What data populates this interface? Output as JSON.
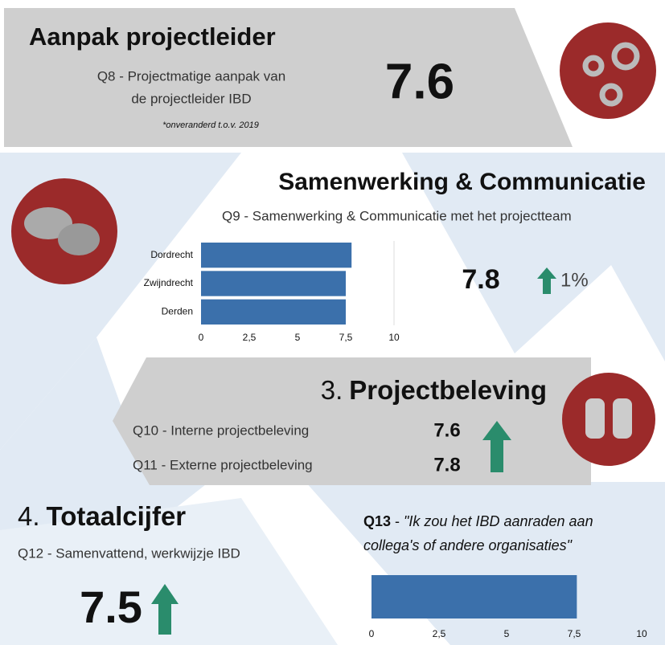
{
  "sections": [
    {
      "title": "Aanpak projectleider",
      "question_lines": [
        "Q8 - Projectmatige aanpak van",
        "de projectleider IBD"
      ],
      "note": "*onveranderd t.o.v. 2019",
      "score": 7.6
    },
    {
      "title": "Samenwerking & Communicatie",
      "question": "Q9 - Samenwerking & Communicatie met het projectteam",
      "score": 7.8,
      "change": "1%"
    },
    {
      "number": "3.",
      "title": "Projectbeleving",
      "items": [
        {
          "label": "Q10 - Interne projectbeleving",
          "score": 7.6
        },
        {
          "label": "Q11 - Externe projectbeleving",
          "score": 7.8
        }
      ]
    },
    {
      "number": "4.",
      "title": "Totaalcijfer",
      "question": "Q12 - Samenvattend, werkwijzje IBD",
      "score": 7.5
    }
  ],
  "q13": {
    "code": "Q13",
    "separator": "-",
    "quote_lines": [
      "\"Ik zou het IBD aanraden aan",
      "collega's of andere organisaties\""
    ]
  },
  "chart_data": [
    {
      "type": "barh",
      "categories": [
        "Dordrecht",
        "Zwijndrecht",
        "Derden"
      ],
      "values": [
        7.8,
        7.5,
        7.5
      ],
      "color": "#3b70ab",
      "xlim": [
        0,
        10
      ],
      "xticks": [
        0,
        {
          "value": 2.5,
          "label": "2,5"
        },
        5,
        {
          "value": 7.5,
          "label": "7,5"
        },
        10
      ]
    },
    {
      "type": "barh",
      "categories": [
        null
      ],
      "values": [
        7.6
      ],
      "color": "#3b70ab",
      "xlim": [
        0,
        10
      ],
      "xticks": [
        0,
        {
          "value": 2.5,
          "label": "2,5"
        },
        5,
        {
          "value": 7.5,
          "label": "7,5"
        },
        10
      ]
    }
  ]
}
